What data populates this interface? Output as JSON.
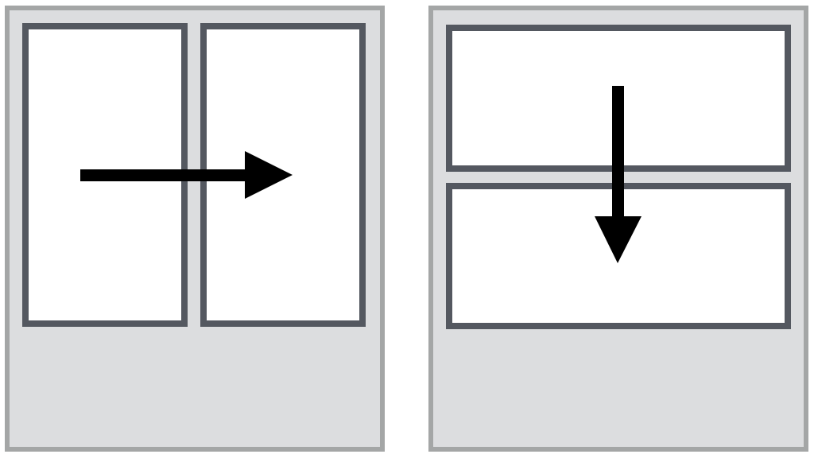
{
  "layout_modes": [
    {
      "id": "side-by-side",
      "pane_count": 2,
      "split_direction": "horizontal",
      "arrow_direction": "right"
    },
    {
      "id": "stacked",
      "pane_count": 2,
      "split_direction": "vertical",
      "arrow_direction": "down"
    }
  ],
  "colors": {
    "page_background": "#ffffff",
    "outer_panel_fill": "#dcdddf",
    "outer_panel_border": "#a4a6a6",
    "pane_fill": "#ffffff",
    "pane_border": "#545860",
    "arrow": "#000000"
  },
  "icons": {
    "side_by_side_arrow": "arrow-right-icon",
    "stacked_arrow": "arrow-down-icon"
  }
}
